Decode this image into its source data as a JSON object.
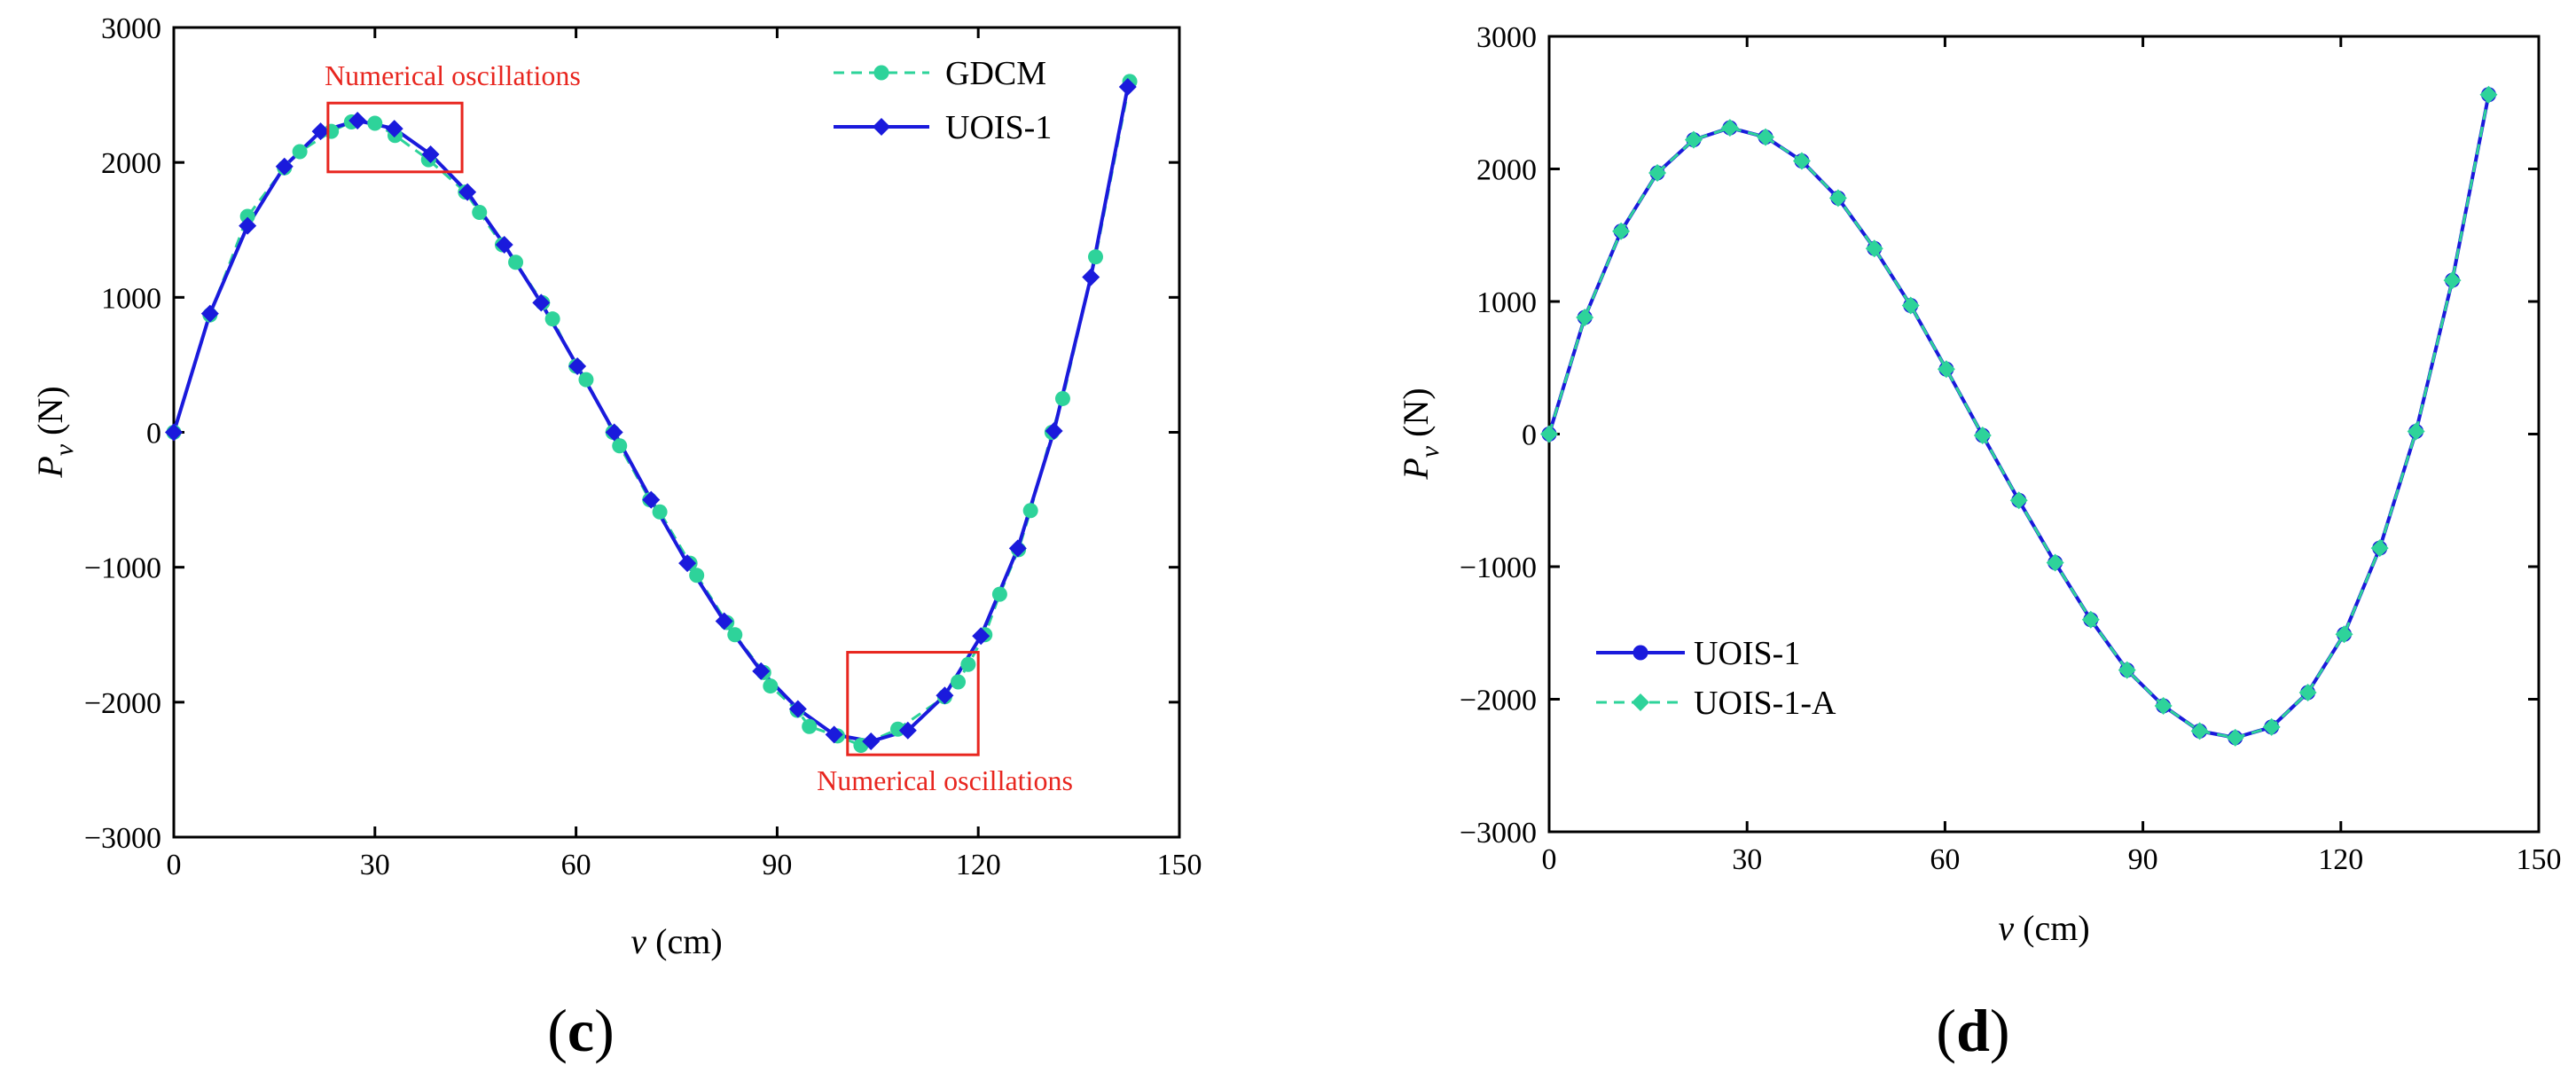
{
  "chart_data": [
    {
      "type": "line",
      "panel": "(c)",
      "panel_open": "(",
      "panel_letter": "c",
      "panel_close": ")",
      "title": "",
      "xlabel": "v (cm)",
      "xlabel_var": "v",
      "xlabel_unit": " (cm)",
      "ylabel": "P_v (N)",
      "ylabel_var": "P",
      "ylabel_sub": "v",
      "ylabel_unit": " (N)",
      "xlim": [
        0,
        150
      ],
      "ylim": [
        -3000,
        3000
      ],
      "xticks": [
        0,
        30,
        60,
        90,
        120,
        150
      ],
      "yticks": [
        -3000,
        -2000,
        -1000,
        0,
        1000,
        2000,
        3000
      ],
      "grid": false,
      "legend_position": "top-right",
      "series": [
        {
          "name": "GDCM",
          "style": "dashed",
          "marker": "circle",
          "color": "#2ed39a",
          "x": [
            0,
            5.4,
            11,
            16.5,
            18.8,
            23.5,
            26.5,
            30,
            33,
            38,
            43.5,
            45.6,
            49,
            51,
            55,
            56.5,
            60,
            61.5,
            65.5,
            66.5,
            71,
            72.5,
            77,
            78,
            82.5,
            83.7,
            88,
            89,
            93,
            94.8,
            99,
            102.5,
            108,
            115,
            117,
            118.5,
            121,
            123.2,
            126,
            127.8,
            131,
            132.6,
            137.5,
            142.6
          ],
          "y": [
            0,
            870,
            1600,
            1960,
            2080,
            2230,
            2300,
            2290,
            2200,
            2020,
            1780,
            1630,
            1390,
            1260,
            960,
            840,
            490,
            390,
            0,
            -100,
            -500,
            -590,
            -970,
            -1060,
            -1410,
            -1500,
            -1780,
            -1880,
            -2060,
            -2180,
            -2250,
            -2320,
            -2200,
            -1960,
            -1850,
            -1720,
            -1500,
            -1200,
            -870,
            -580,
            0,
            250,
            1300,
            2600
          ]
        },
        {
          "name": "UOIS-1",
          "style": "solid",
          "marker": "diamond",
          "color": "#1a1adc",
          "x": [
            0,
            5.4,
            11,
            16.5,
            21.9,
            27.4,
            32.9,
            38.3,
            43.8,
            49.3,
            54.8,
            60.2,
            65.7,
            71.2,
            76.6,
            82.1,
            87.6,
            93.1,
            98.5,
            104,
            109.5,
            115,
            120.4,
            125.9,
            131.3,
            136.8,
            142.3
          ],
          "y": [
            0,
            880,
            1530,
            1970,
            2230,
            2310,
            2250,
            2060,
            1780,
            1390,
            960,
            490,
            0,
            -500,
            -970,
            -1400,
            -1770,
            -2050,
            -2240,
            -2290,
            -2210,
            -1950,
            -1510,
            -860,
            10,
            1150,
            2560
          ]
        }
      ],
      "annotations": [
        {
          "text": "Numerical oscillations",
          "x_range": [
            23,
            43
          ],
          "y_range": [
            1930,
            2440
          ]
        },
        {
          "text": "Numerical oscillations",
          "x_range": [
            100.5,
            120
          ],
          "y_range": [
            -2390,
            -1630
          ]
        }
      ]
    },
    {
      "type": "line",
      "panel": "(d)",
      "panel_open": "(",
      "panel_letter": "d",
      "panel_close": ")",
      "title": "",
      "xlabel": "v (cm)",
      "xlabel_var": "v",
      "xlabel_unit": " (cm)",
      "ylabel": "P_v (N)",
      "ylabel_var": "P",
      "ylabel_sub": "v",
      "ylabel_unit": " (N)",
      "xlim": [
        0,
        150
      ],
      "ylim": [
        -3000,
        3000
      ],
      "xticks": [
        0,
        30,
        60,
        90,
        120,
        150
      ],
      "yticks": [
        -3000,
        -2000,
        -1000,
        0,
        1000,
        2000,
        3000
      ],
      "grid": false,
      "legend_position": "bottom-left",
      "series": [
        {
          "name": "UOIS-1",
          "style": "solid",
          "marker": "circle",
          "color": "#1a1adc",
          "x": [
            0,
            5.4,
            10.9,
            16.4,
            21.9,
            27.4,
            32.8,
            38.3,
            43.8,
            49.3,
            54.8,
            60.2,
            65.7,
            71.2,
            76.7,
            82.1,
            87.6,
            93.1,
            98.6,
            104,
            109.5,
            115,
            120.5,
            125.9,
            131.4,
            136.9,
            142.4
          ],
          "y": [
            0,
            880,
            1530,
            1970,
            2220,
            2310,
            2240,
            2060,
            1780,
            1400,
            970,
            490,
            -10,
            -500,
            -970,
            -1400,
            -1780,
            -2050,
            -2240,
            -2290,
            -2210,
            -1950,
            -1510,
            -860,
            20,
            1160,
            2560
          ]
        },
        {
          "name": "UOIS-1-A",
          "style": "dashed",
          "marker": "diamond",
          "color": "#2ed39a",
          "x": [
            0,
            5.4,
            10.9,
            16.4,
            21.9,
            27.4,
            32.8,
            38.3,
            43.8,
            49.3,
            54.8,
            60.2,
            65.7,
            71.2,
            76.7,
            82.1,
            87.6,
            93.1,
            98.6,
            104,
            109.5,
            115,
            120.5,
            125.9,
            131.4,
            136.9,
            142.4
          ],
          "y": [
            0,
            880,
            1530,
            1970,
            2220,
            2310,
            2240,
            2060,
            1780,
            1400,
            970,
            490,
            -10,
            -500,
            -970,
            -1400,
            -1780,
            -2050,
            -2240,
            -2290,
            -2210,
            -1950,
            -1510,
            -860,
            20,
            1160,
            2560
          ]
        }
      ],
      "annotations": []
    }
  ]
}
